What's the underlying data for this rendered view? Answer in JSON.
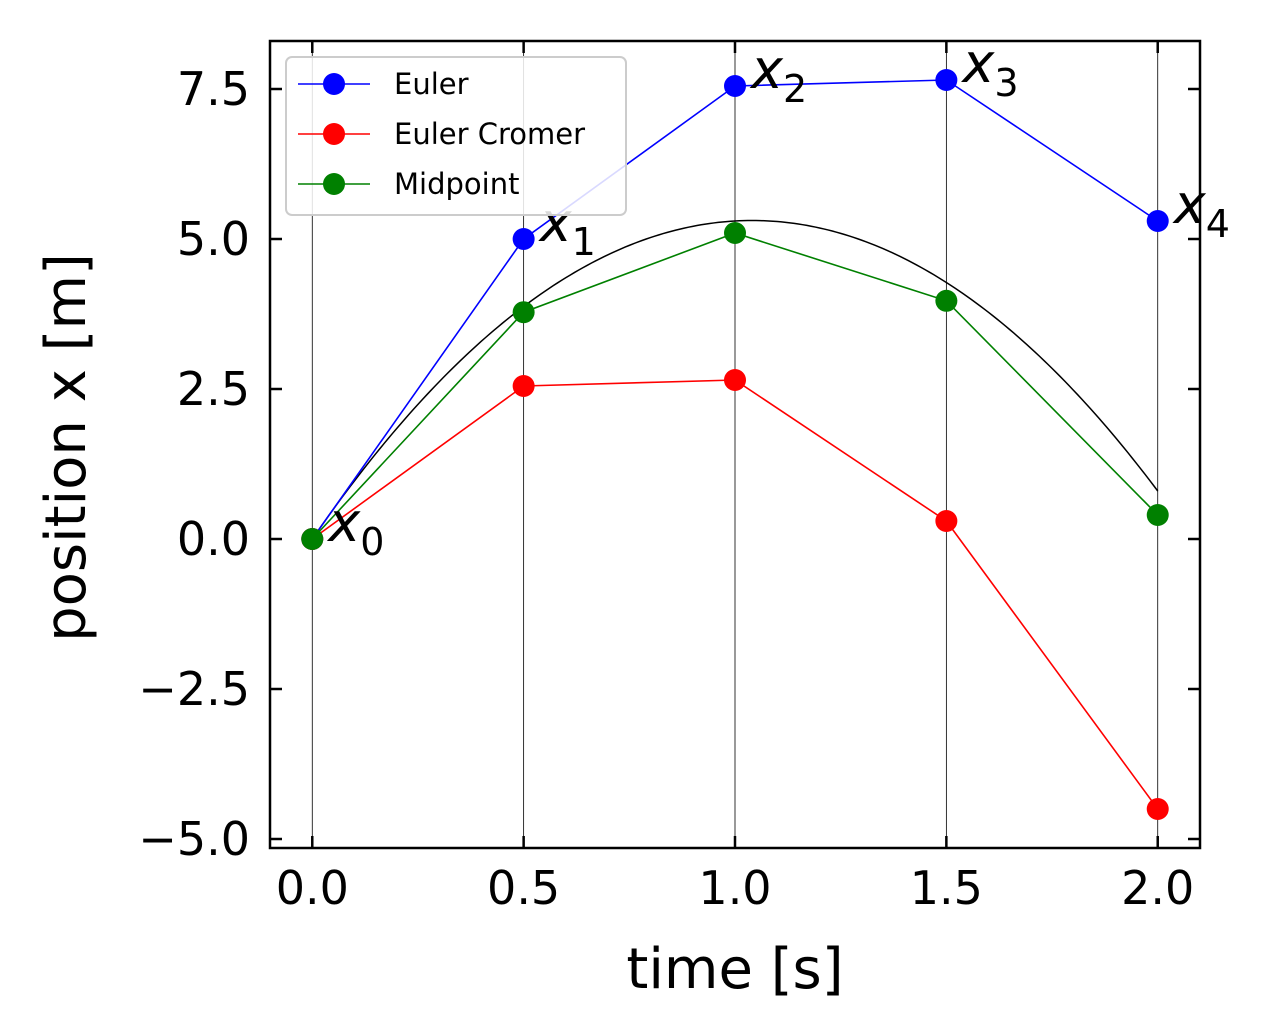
{
  "chart_data": {
    "type": "line",
    "xlabel": "time [s]",
    "ylabel": "position x [m]",
    "xlim": [
      -0.1,
      2.1
    ],
    "ylim": [
      -5.15,
      8.3
    ],
    "xticks": [
      "0.0",
      "0.5",
      "1.0",
      "1.5",
      "2.0"
    ],
    "yticks": [
      "−5.0",
      "−2.5",
      "0.0",
      "2.5",
      "5.0",
      "7.5"
    ],
    "legend_position": "top-left",
    "vertical_gridlines_at": [
      0.0,
      0.5,
      1.0,
      1.5,
      2.0
    ],
    "x": [
      0.0,
      0.5,
      1.0,
      1.5,
      2.0
    ],
    "series": [
      {
        "name": "Euler",
        "color": "#0000ff",
        "values": [
          0.0,
          5.0,
          7.55,
          7.65,
          5.3
        ]
      },
      {
        "name": "Euler Cromer",
        "color": "#ff0000",
        "values": [
          0.0,
          2.55,
          2.65,
          0.3,
          -4.5
        ]
      },
      {
        "name": "Midpoint",
        "color": "#008000",
        "values": [
          0.0,
          3.78,
          5.1,
          3.97,
          0.4
        ]
      }
    ],
    "exact_curve": {
      "color": "#000000",
      "equation": "x(t) = 10.2 t - 4.9 t^2",
      "v0": 10.2,
      "half_g": 4.9
    },
    "annotations": [
      {
        "base": "x",
        "sub": "0",
        "x": 0.0,
        "y": 0.0
      },
      {
        "base": "x",
        "sub": "1",
        "x": 0.5,
        "y": 5.0
      },
      {
        "base": "x",
        "sub": "2",
        "x": 1.0,
        "y": 7.55
      },
      {
        "base": "x",
        "sub": "3",
        "x": 1.5,
        "y": 7.65
      },
      {
        "base": "x",
        "sub": "4",
        "x": 2.0,
        "y": 5.3
      }
    ]
  }
}
